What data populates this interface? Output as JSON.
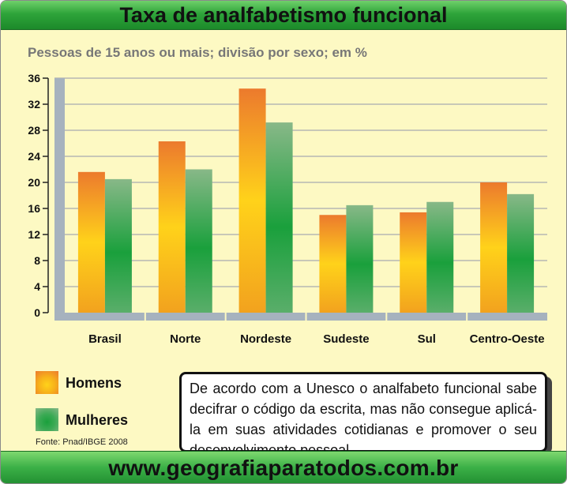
{
  "title": "Taxa de analfabetismo funcional",
  "subtitle": "Pessoas de 15 anos ou mais; divisão por sexo; em %",
  "legend": {
    "homens": "Homens",
    "mulheres": "Mulheres"
  },
  "source": "Fonte: Pnad/IBGE 2008",
  "note": "De acordo com a Unesco o analfabeto funcional sabe decifrar o código da escrita, mas não consegue aplicá-la em suas atividades cotidianas e promover o seu desenvolvimento pessoal.",
  "footer": "www.geografiaparatodos.com.br",
  "colors": {
    "homens_top": "#ec7a2d",
    "homens_mid": "#ffd21a",
    "mulheres_top": "#88b888",
    "mulheres_mid": "#1aa03c",
    "axis": "#a6b2be",
    "grid": "#a8acb0"
  },
  "chart_data": {
    "type": "bar",
    "categories": [
      "Brasil",
      "Norte",
      "Nordeste",
      "Sudeste",
      "Sul",
      "Centro-Oeste"
    ],
    "series": [
      {
        "name": "Homens",
        "values": [
          21.6,
          26.3,
          34.4,
          15.0,
          15.4,
          20.0
        ]
      },
      {
        "name": "Mulheres",
        "values": [
          20.5,
          22.0,
          29.2,
          16.5,
          17.0,
          18.2
        ]
      }
    ],
    "yticks": [
      0,
      4,
      8,
      12,
      16,
      20,
      24,
      28,
      32,
      36
    ],
    "ylim": [
      0,
      36
    ],
    "grid": true,
    "legend_position": "bottom-left"
  }
}
